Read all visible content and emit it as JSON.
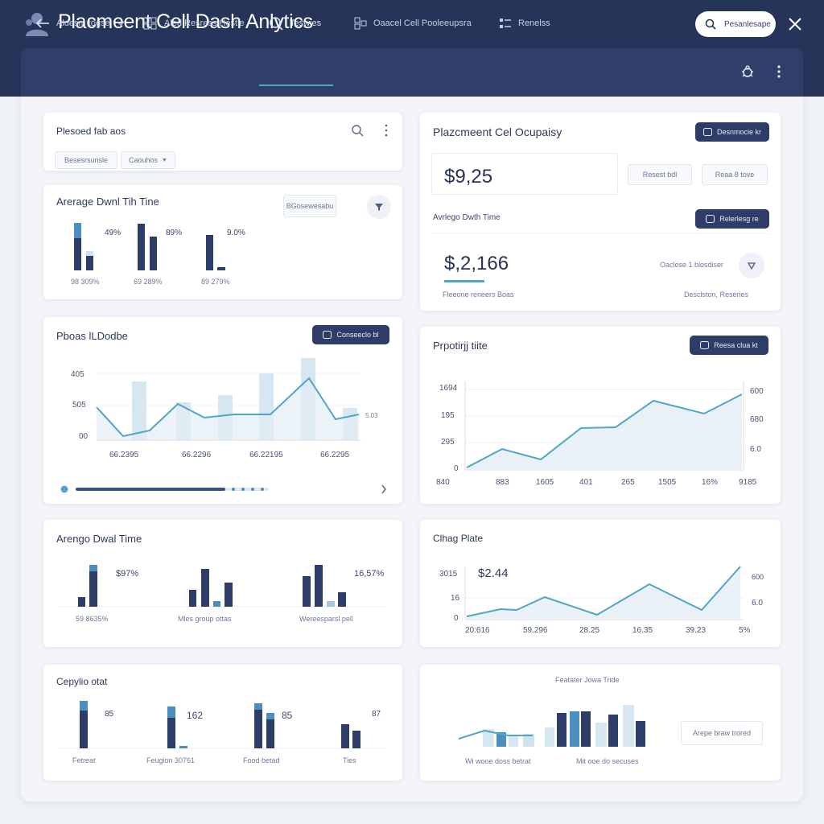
{
  "header": {
    "title": "Placmeent Cell Dash Anlytics",
    "search_label": "Pesanlesape"
  },
  "nav": {
    "back_label": "Aldesm togse",
    "items": [
      {
        "label": "Aled Resress Hestle"
      },
      {
        "label": "Teswies"
      },
      {
        "label": "Oaacel Cell Pooleeupsra"
      },
      {
        "label": "Renelss"
      }
    ]
  },
  "cards": {
    "filter": {
      "title": "Plesoed fab aos",
      "chip1": "Besesrsunsle",
      "chip2": "Caouhos"
    },
    "dwell_bars": {
      "title": "Arerage Dwnl Tih Tine",
      "button": "BGosewesabu",
      "groups": [
        {
          "pct": "49%",
          "sub": "98 309%"
        },
        {
          "pct": "89%",
          "sub": "69 289%"
        },
        {
          "pct": "9.0%",
          "sub": "89 279%"
        }
      ]
    },
    "occupancy": {
      "title": "Plazcmeent Cel Ocupaisy",
      "button1": "Desnmocie kr",
      "value1": "$9,25",
      "chip1": "Resest bdl",
      "chip2": "Reaa 8 tove",
      "subtitle": "Avrlego Dwth Time",
      "button2": "Relerlesg re",
      "value2": "$,2,166",
      "caption_left": "Fleeone reneers Boas",
      "caption_right_top": "Oaclose 1 blosdiser",
      "caption_right_bottom": "Desclston, Reseries"
    },
    "combo": {
      "title": "Pboas lLDodbe",
      "button": "Conseeclo bl",
      "y_labels": [
        "405",
        "505",
        "00"
      ],
      "x_labels": [
        "66.2395",
        "66.2296",
        "66.22195",
        "66.2295"
      ],
      "right_label": "5.03"
    },
    "area1": {
      "title": "Prpotirjj tiite",
      "button": "Reesa clua kt",
      "y_left": [
        "1694",
        "195",
        "295",
        "0"
      ],
      "y_right": [
        "600",
        "680",
        "6.0"
      ],
      "x_labels": [
        "840",
        "883",
        "1605",
        "401",
        "265",
        "1505",
        "16%",
        "9185"
      ]
    },
    "dwell2": {
      "title": "Arengo Dwal Time",
      "labels": [
        {
          "pct": "$97%",
          "sub": "59 8635%"
        },
        {
          "pct": "",
          "sub": "Mles group ottas"
        },
        {
          "pct": "16,57%",
          "sub": "Wereesparsl pell"
        }
      ]
    },
    "area2": {
      "title": "Clhag Plate",
      "value": "$2.44",
      "y_left": [
        "3015",
        "16",
        "0"
      ],
      "y_right": [
        "600",
        "6.0"
      ],
      "x_labels": [
        "20:616",
        "59.296",
        "28.25",
        "16.35",
        "39.23",
        "5%"
      ]
    },
    "bars3": {
      "title": "Cepylio otat",
      "groups": [
        {
          "num": "85",
          "label": "Fetreat"
        },
        {
          "num": "162",
          "label": "Feugion 30761"
        },
        {
          "num": "85",
          "label": "Food betad"
        },
        {
          "num": "87",
          "label": "Ties"
        }
      ]
    },
    "mixed": {
      "title": "Featater Jowa Tride",
      "button": "Arepe braw trored",
      "label_left": "Wi wooe doss betrat",
      "label_right": "Mit ooe do secuses"
    }
  },
  "colors": {
    "navy": "#27345a",
    "accent": "#4fa6c6",
    "bar_dark": "#2e3d68",
    "bar_light": "#cfe2ee"
  }
}
